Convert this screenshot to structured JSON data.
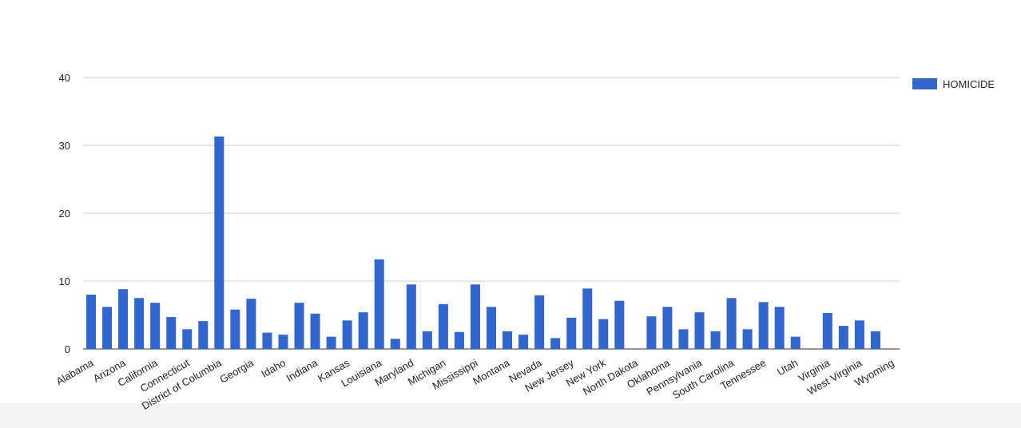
{
  "chart_data": {
    "type": "bar",
    "categories": [
      "Alabama",
      null,
      "Arizona",
      null,
      "California",
      null,
      "Connecticut",
      null,
      "District of Columbia",
      null,
      "Georgia",
      null,
      "Idaho",
      null,
      "Indiana",
      null,
      "Kansas",
      null,
      "Louisiana",
      null,
      "Maryland",
      null,
      "Michigan",
      null,
      "Mississippi",
      null,
      "Montana",
      null,
      "Nevada",
      null,
      "New Jersey",
      null,
      "New York",
      null,
      "North Dakota",
      null,
      "Oklahoma",
      null,
      "Pennsylvania",
      null,
      "South Carolina",
      null,
      "Tennessee",
      null,
      "Utah",
      null,
      "Virginia",
      null,
      "West Virginia",
      null,
      "Wyoming"
    ],
    "series": [
      {
        "name": "HOMICIDE",
        "color": "#3366cc",
        "values": [
          8.0,
          6.2,
          8.8,
          7.5,
          6.8,
          4.7,
          2.9,
          4.1,
          31.3,
          5.8,
          7.4,
          2.4,
          2.1,
          6.8,
          5.2,
          1.8,
          4.2,
          5.4,
          13.2,
          1.5,
          9.5,
          2.6,
          6.6,
          2.5,
          9.5,
          6.2,
          2.6,
          2.1,
          7.9,
          1.6,
          4.6,
          8.9,
          4.4,
          7.1,
          null,
          4.8,
          6.2,
          2.9,
          5.4,
          2.6,
          7.5,
          2.9,
          6.9,
          6.2,
          1.8,
          null,
          5.3,
          3.4,
          4.2,
          2.6,
          null
        ]
      }
    ],
    "ylim": [
      0,
      40
    ],
    "yticks": [
      0,
      10,
      20,
      30,
      40
    ],
    "grid": true,
    "legend": "right"
  }
}
